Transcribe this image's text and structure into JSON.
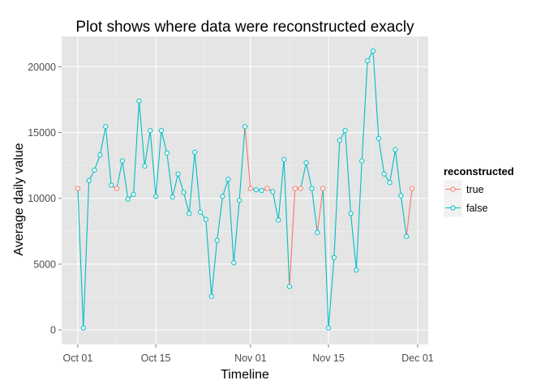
{
  "chart_data": {
    "type": "line",
    "title": "Plot shows where data were reconstructed exacly",
    "xlabel": "Timeline",
    "ylabel": "Average daily value",
    "x_ticks": [
      "Oct 01",
      "Oct 15",
      "Nov 01",
      "Nov 15",
      "Dec 01"
    ],
    "x_tick_days": [
      0,
      14,
      31,
      45,
      61
    ],
    "y_ticks": [
      0,
      5000,
      10000,
      15000,
      20000
    ],
    "y_tick_labels": [
      "0",
      "5000",
      "10000",
      "15000",
      "20000"
    ],
    "xlim_days": [
      -2.9,
      62.9
    ],
    "ylim": [
      -1100,
      22300
    ],
    "grid": true,
    "legend_position": "right",
    "legend_title": "reconstructed",
    "colors": {
      "true": "#f8766d",
      "false": "#00bfc4"
    },
    "series": [
      {
        "name": "true",
        "key": "true"
      },
      {
        "name": "false",
        "key": "false"
      }
    ],
    "points": [
      {
        "x": "Oct 01",
        "y": 10750,
        "reconstructed": "true"
      },
      {
        "x": "Oct 02",
        "y": 150,
        "reconstructed": "false"
      },
      {
        "x": "Oct 03",
        "y": 11350,
        "reconstructed": "false"
      },
      {
        "x": "Oct 04",
        "y": 12150,
        "reconstructed": "false"
      },
      {
        "x": "Oct 05",
        "y": 13300,
        "reconstructed": "false"
      },
      {
        "x": "Oct 06",
        "y": 15450,
        "reconstructed": "false"
      },
      {
        "x": "Oct 07",
        "y": 11000,
        "reconstructed": "false"
      },
      {
        "x": "Oct 08",
        "y": 10750,
        "reconstructed": "true"
      },
      {
        "x": "Oct 09",
        "y": 12850,
        "reconstructed": "false"
      },
      {
        "x": "Oct 10",
        "y": 9950,
        "reconstructed": "false"
      },
      {
        "x": "Oct 11",
        "y": 10300,
        "reconstructed": "false"
      },
      {
        "x": "Oct 12",
        "y": 17400,
        "reconstructed": "false"
      },
      {
        "x": "Oct 13",
        "y": 12450,
        "reconstructed": "false"
      },
      {
        "x": "Oct 14",
        "y": 15150,
        "reconstructed": "false"
      },
      {
        "x": "Oct 15",
        "y": 10150,
        "reconstructed": "false"
      },
      {
        "x": "Oct 16",
        "y": 15150,
        "reconstructed": "false"
      },
      {
        "x": "Oct 17",
        "y": 13450,
        "reconstructed": "false"
      },
      {
        "x": "Oct 18",
        "y": 10100,
        "reconstructed": "false"
      },
      {
        "x": "Oct 19",
        "y": 11850,
        "reconstructed": "false"
      },
      {
        "x": "Oct 20",
        "y": 10450,
        "reconstructed": "false"
      },
      {
        "x": "Oct 21",
        "y": 8850,
        "reconstructed": "false"
      },
      {
        "x": "Oct 22",
        "y": 13500,
        "reconstructed": "false"
      },
      {
        "x": "Oct 23",
        "y": 8950,
        "reconstructed": "false"
      },
      {
        "x": "Oct 24",
        "y": 8400,
        "reconstructed": "false"
      },
      {
        "x": "Oct 25",
        "y": 2550,
        "reconstructed": "false"
      },
      {
        "x": "Oct 26",
        "y": 6800,
        "reconstructed": "false"
      },
      {
        "x": "Oct 27",
        "y": 10150,
        "reconstructed": "false"
      },
      {
        "x": "Oct 28",
        "y": 11450,
        "reconstructed": "false"
      },
      {
        "x": "Oct 29",
        "y": 5100,
        "reconstructed": "false"
      },
      {
        "x": "Oct 30",
        "y": 9850,
        "reconstructed": "false"
      },
      {
        "x": "Oct 31",
        "y": 15450,
        "reconstructed": "false"
      },
      {
        "x": "Nov 01",
        "y": 10750,
        "reconstructed": "true"
      },
      {
        "x": "Nov 02",
        "y": 10650,
        "reconstructed": "false"
      },
      {
        "x": "Nov 03",
        "y": 10600,
        "reconstructed": "false"
      },
      {
        "x": "Nov 04",
        "y": 10750,
        "reconstructed": "true"
      },
      {
        "x": "Nov 05",
        "y": 10500,
        "reconstructed": "false"
      },
      {
        "x": "Nov 06",
        "y": 8350,
        "reconstructed": "false"
      },
      {
        "x": "Nov 07",
        "y": 12950,
        "reconstructed": "false"
      },
      {
        "x": "Nov 08",
        "y": 3300,
        "reconstructed": "false"
      },
      {
        "x": "Nov 09",
        "y": 10750,
        "reconstructed": "true"
      },
      {
        "x": "Nov 10",
        "y": 10750,
        "reconstructed": "true"
      },
      {
        "x": "Nov 11",
        "y": 12700,
        "reconstructed": "false"
      },
      {
        "x": "Nov 12",
        "y": 10750,
        "reconstructed": "false"
      },
      {
        "x": "Nov 13",
        "y": 7400,
        "reconstructed": "false"
      },
      {
        "x": "Nov 14",
        "y": 10750,
        "reconstructed": "true"
      },
      {
        "x": "Nov 15",
        "y": 150,
        "reconstructed": "false"
      },
      {
        "x": "Nov 16",
        "y": 5500,
        "reconstructed": "false"
      },
      {
        "x": "Nov 17",
        "y": 14400,
        "reconstructed": "false"
      },
      {
        "x": "Nov 18",
        "y": 15150,
        "reconstructed": "false"
      },
      {
        "x": "Nov 19",
        "y": 8850,
        "reconstructed": "false"
      },
      {
        "x": "Nov 20",
        "y": 4550,
        "reconstructed": "false"
      },
      {
        "x": "Nov 21",
        "y": 12850,
        "reconstructed": "false"
      },
      {
        "x": "Nov 22",
        "y": 20450,
        "reconstructed": "false"
      },
      {
        "x": "Nov 23",
        "y": 21200,
        "reconstructed": "false"
      },
      {
        "x": "Nov 24",
        "y": 14550,
        "reconstructed": "false"
      },
      {
        "x": "Nov 25",
        "y": 11850,
        "reconstructed": "false"
      },
      {
        "x": "Nov 26",
        "y": 11200,
        "reconstructed": "false"
      },
      {
        "x": "Nov 27",
        "y": 13700,
        "reconstructed": "false"
      },
      {
        "x": "Nov 28",
        "y": 10200,
        "reconstructed": "false"
      },
      {
        "x": "Nov 29",
        "y": 7100,
        "reconstructed": "false"
      },
      {
        "x": "Nov 30",
        "y": 10750,
        "reconstructed": "true"
      }
    ]
  }
}
